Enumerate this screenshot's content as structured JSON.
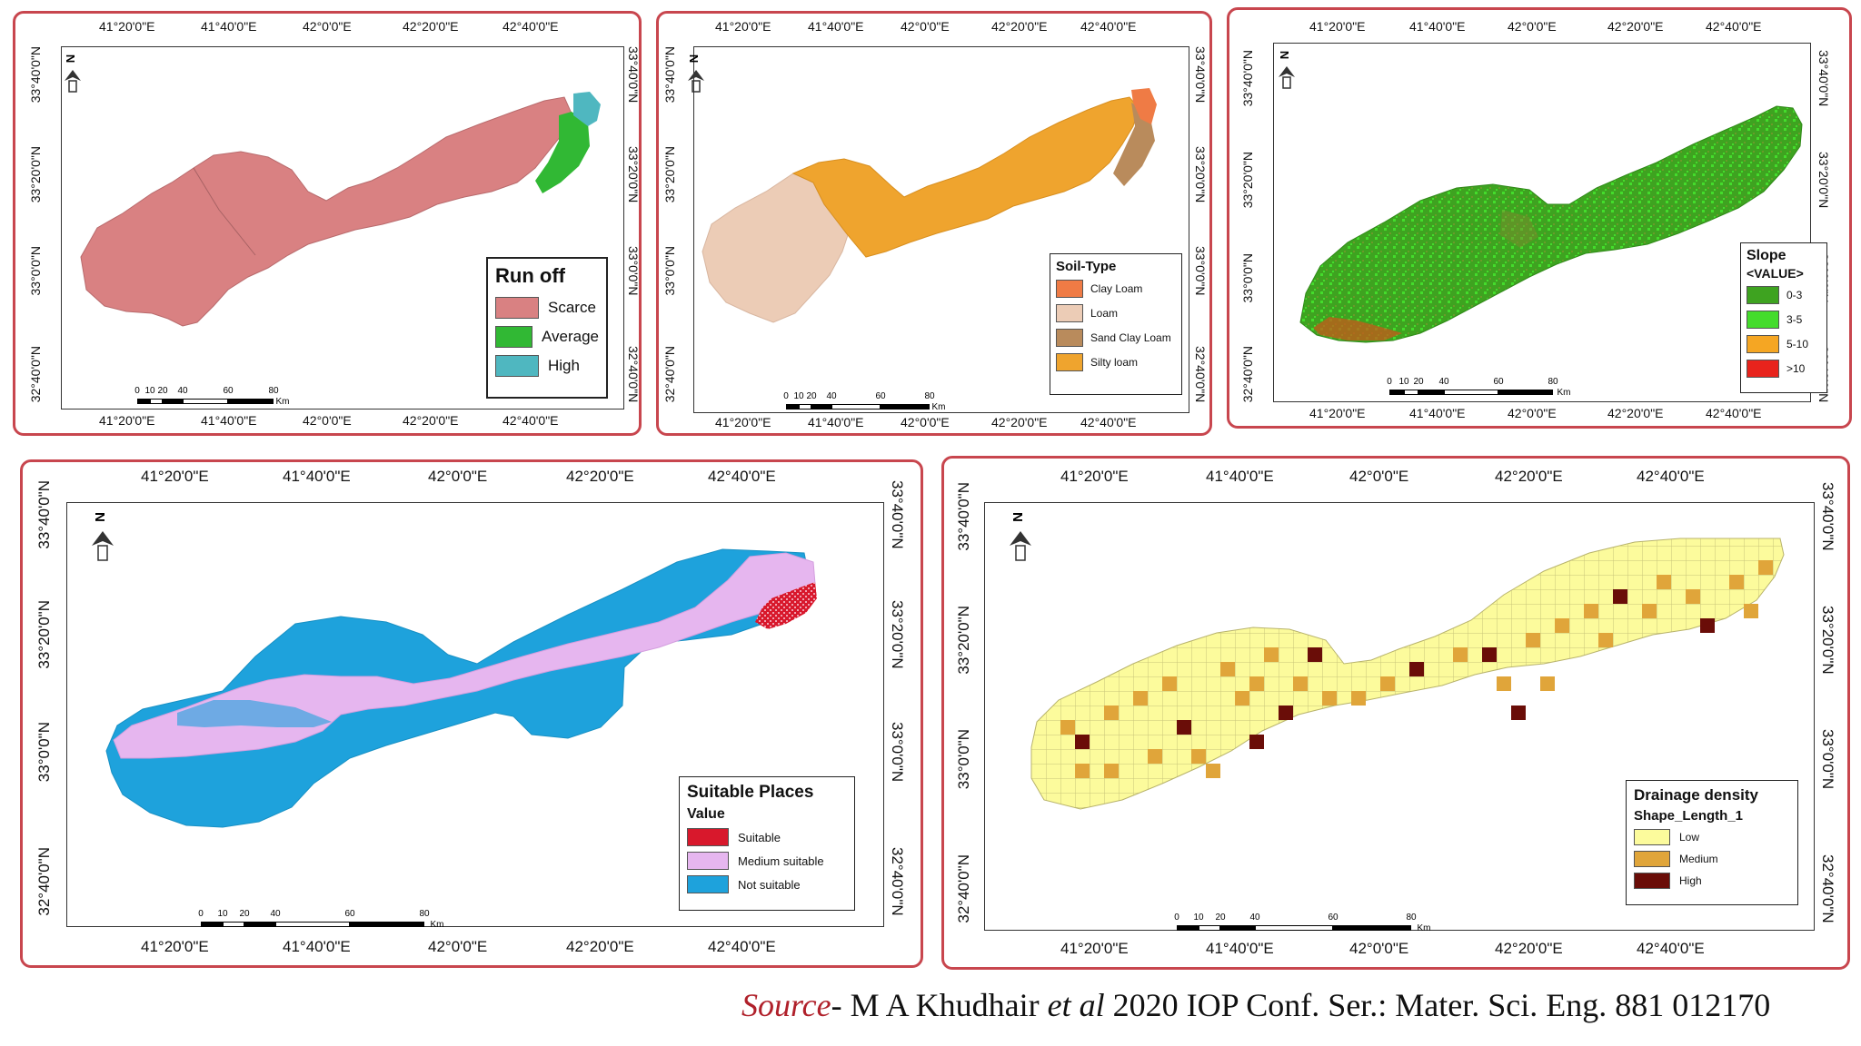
{
  "ticks": {
    "lon": [
      "41°20'0\"E",
      "41°40'0\"E",
      "42°0'0\"E",
      "42°20'0\"E",
      "42°40'0\"E"
    ],
    "lat": [
      "33°40'0\"N",
      "33°20'0\"N",
      "33°0'0\"N",
      "32°40'0\"N"
    ]
  },
  "scale": {
    "labels": [
      "0",
      "10",
      "20",
      "40",
      "60",
      "80"
    ],
    "unit": "Km"
  },
  "north_label": "N",
  "maps": {
    "runoff": {
      "legend_title": "Run off",
      "items": [
        {
          "label": "Scarce",
          "color": "#d98182"
        },
        {
          "label": "Average",
          "color": "#31b834"
        },
        {
          "label": "High",
          "color": "#4fb7c0"
        }
      ]
    },
    "soil": {
      "legend_title": "Soil-Type",
      "items": [
        {
          "label": "Clay Loam",
          "color": "#ef7b45"
        },
        {
          "label": "Loam",
          "color": "#ecccb6"
        },
        {
          "label": "Sand Clay Loam",
          "color": "#b98b5c"
        },
        {
          "label": "Silty loam",
          "color": "#efa42e"
        }
      ]
    },
    "slope": {
      "legend_title": "Slope",
      "legend_subtitle": "<VALUE>",
      "items": [
        {
          "label": "0-3",
          "color": "#3ea320"
        },
        {
          "label": "3-5",
          "color": "#44dc2c"
        },
        {
          "label": "5-10",
          "color": "#f5a623"
        },
        {
          "label": ">10",
          "color": "#e8231c"
        }
      ]
    },
    "suitable": {
      "legend_title": "Suitable Places",
      "legend_subtitle": "Value",
      "items": [
        {
          "label": "Suitable",
          "color": "#d8182c"
        },
        {
          "label": "Medium suitable",
          "color": "#e6b6ef"
        },
        {
          "label": "Not suitable",
          "color": "#1ea2dc"
        }
      ]
    },
    "drainage": {
      "legend_title": "Drainage density",
      "legend_subtitle": "Shape_Length_1",
      "items": [
        {
          "label": "Low",
          "color": "#fcfb9c"
        },
        {
          "label": "Medium",
          "color": "#e0a53a"
        },
        {
          "label": "High",
          "color": "#6a0d08"
        }
      ]
    }
  },
  "source": {
    "label": "Source",
    "authors": "- M A Khudhair ",
    "etal": "et al",
    "rest": " 2020 IOP Conf. Ser.: Mater. Sci. Eng. 881 012170"
  }
}
